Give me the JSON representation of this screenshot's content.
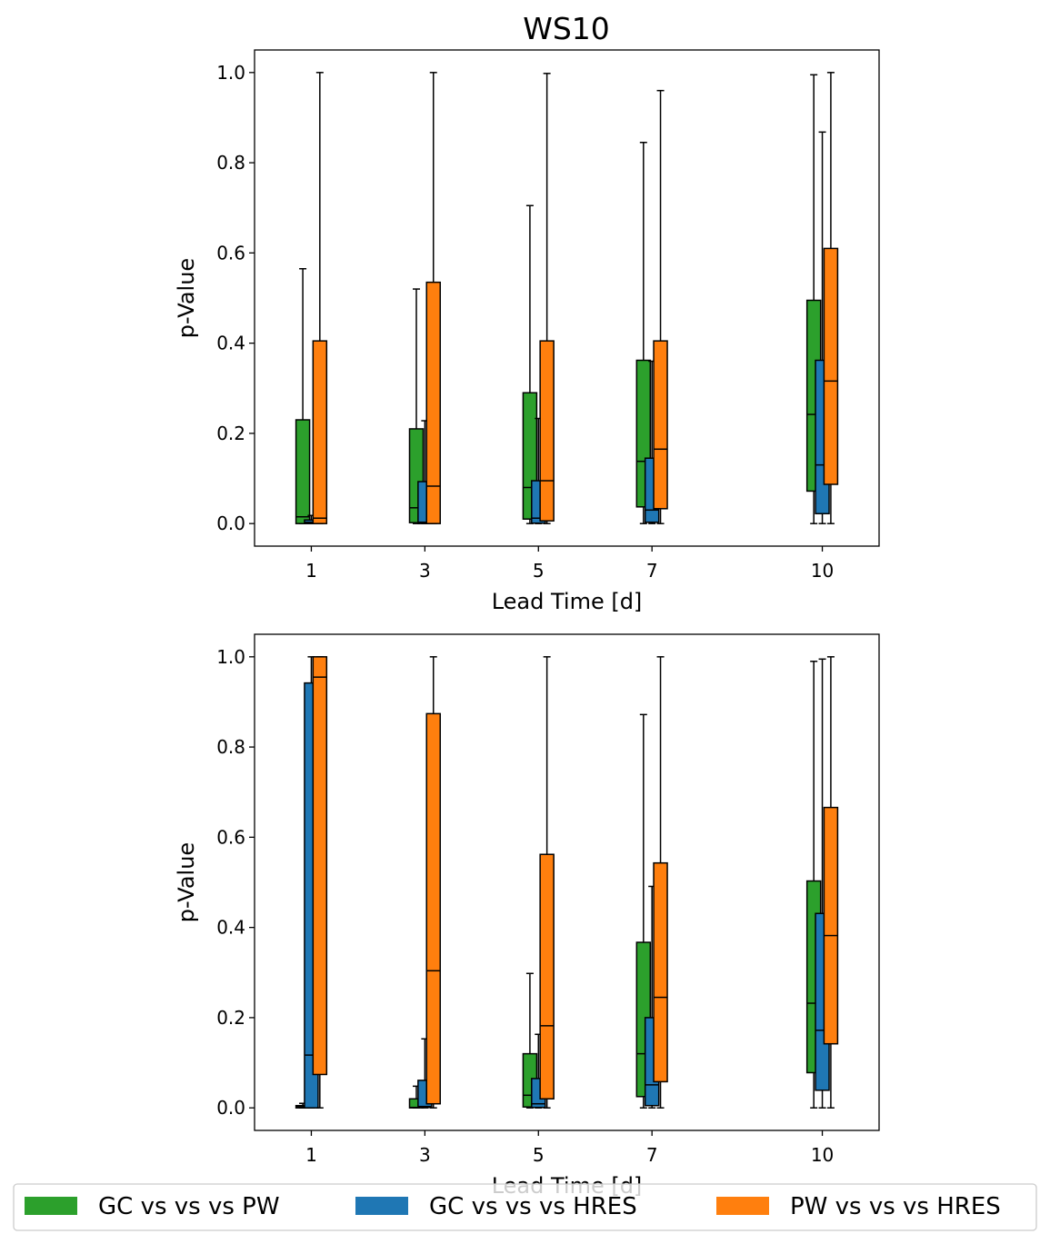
{
  "title": "WS10",
  "legend": {
    "placement": "bottom",
    "items": [
      {
        "label": "GC vs vs vs PW",
        "color": "#2ca02c"
      },
      {
        "label": "GC vs vs vs HRES",
        "color": "#1f77b4"
      },
      {
        "label": "PW vs vs vs HRES",
        "color": "#ff7f0e"
      }
    ]
  },
  "chart_data": [
    {
      "type": "box",
      "xlabel": "Lead Time [d]",
      "ylabel": "p-Value",
      "xlim": [
        0,
        11
      ],
      "ylim": [
        -0.05,
        1.05
      ],
      "xticks": [
        1,
        3,
        5,
        7,
        10
      ],
      "yticks": [
        0.0,
        0.2,
        0.4,
        0.6,
        0.8,
        1.0
      ],
      "grid": false,
      "series": [
        {
          "name": "GC vs vs vs PW",
          "color": "#2ca02c",
          "boxes": [
            {
              "x": 1,
              "min": 0.0,
              "q1": 0.0,
              "median": 0.015,
              "q3": 0.23,
              "max": 0.565
            },
            {
              "x": 3,
              "min": 0.0,
              "q1": 0.002,
              "median": 0.035,
              "q3": 0.21,
              "max": 0.52
            },
            {
              "x": 5,
              "min": 0.0,
              "q1": 0.01,
              "median": 0.08,
              "q3": 0.29,
              "max": 0.705
            },
            {
              "x": 7,
              "min": 0.0,
              "q1": 0.037,
              "median": 0.138,
              "q3": 0.362,
              "max": 0.845
            },
            {
              "x": 10,
              "min": 0.0,
              "q1": 0.072,
              "median": 0.242,
              "q3": 0.495,
              "max": 0.995
            }
          ]
        },
        {
          "name": "GC vs vs vs HRES",
          "color": "#1f77b4",
          "boxes": [
            {
              "x": 1,
              "min": 0.0,
              "q1": 0.0,
              "median": 0.003,
              "q3": 0.008,
              "max": 0.018
            },
            {
              "x": 3,
              "min": 0.0,
              "q1": 0.0,
              "median": 0.003,
              "q3": 0.093,
              "max": 0.228
            },
            {
              "x": 5,
              "min": 0.0,
              "q1": 0.001,
              "median": 0.012,
              "q3": 0.095,
              "max": 0.233
            },
            {
              "x": 7,
              "min": 0.0,
              "q1": 0.003,
              "median": 0.03,
              "q3": 0.145,
              "max": 0.36
            },
            {
              "x": 10,
              "min": 0.0,
              "q1": 0.022,
              "median": 0.13,
              "q3": 0.362,
              "max": 0.868
            }
          ]
        },
        {
          "name": "PW vs vs vs HRES",
          "color": "#ff7f0e",
          "boxes": [
            {
              "x": 1,
              "min": 0.0,
              "q1": 0.0,
              "median": 0.012,
              "q3": 0.405,
              "max": 1.0
            },
            {
              "x": 3,
              "min": 0.0,
              "q1": 0.0,
              "median": 0.083,
              "q3": 0.535,
              "max": 1.0
            },
            {
              "x": 5,
              "min": 0.0,
              "q1": 0.006,
              "median": 0.095,
              "q3": 0.405,
              "max": 0.998
            },
            {
              "x": 7,
              "min": 0.0,
              "q1": 0.033,
              "median": 0.165,
              "q3": 0.405,
              "max": 0.96
            },
            {
              "x": 10,
              "min": 0.0,
              "q1": 0.087,
              "median": 0.316,
              "q3": 0.61,
              "max": 1.0
            }
          ]
        }
      ]
    },
    {
      "type": "box",
      "xlabel": "Lead Time [d]",
      "ylabel": "p-Value",
      "xlim": [
        0,
        11
      ],
      "ylim": [
        -0.05,
        1.05
      ],
      "xticks": [
        1,
        3,
        5,
        7,
        10
      ],
      "yticks": [
        0.0,
        0.2,
        0.4,
        0.6,
        0.8,
        1.0
      ],
      "grid": false,
      "series": [
        {
          "name": "GC vs vs vs PW",
          "color": "#2ca02c",
          "boxes": [
            {
              "x": 1,
              "min": 0.0,
              "q1": 0.0,
              "median": 0.002,
              "q3": 0.005,
              "max": 0.01
            },
            {
              "x": 3,
              "min": 0.0,
              "q1": 0.0,
              "median": 0.001,
              "q3": 0.02,
              "max": 0.048
            },
            {
              "x": 5,
              "min": 0.0,
              "q1": 0.002,
              "median": 0.028,
              "q3": 0.12,
              "max": 0.298
            },
            {
              "x": 7,
              "min": 0.0,
              "q1": 0.025,
              "median": 0.12,
              "q3": 0.367,
              "max": 0.872
            },
            {
              "x": 10,
              "min": 0.0,
              "q1": 0.078,
              "median": 0.232,
              "q3": 0.503,
              "max": 0.99
            }
          ]
        },
        {
          "name": "GC vs vs vs HRES",
          "color": "#1f77b4",
          "boxes": [
            {
              "x": 1,
              "min": 0.0,
              "q1": 0.0,
              "median": 0.117,
              "q3": 0.942,
              "max": 1.0
            },
            {
              "x": 3,
              "min": 0.0,
              "q1": 0.001,
              "median": 0.003,
              "q3": 0.061,
              "max": 0.153
            },
            {
              "x": 5,
              "min": 0.0,
              "q1": 0.001,
              "median": 0.009,
              "q3": 0.065,
              "max": 0.163
            },
            {
              "x": 7,
              "min": 0.0,
              "q1": 0.005,
              "median": 0.051,
              "q3": 0.2,
              "max": 0.491
            },
            {
              "x": 10,
              "min": 0.0,
              "q1": 0.039,
              "median": 0.172,
              "q3": 0.431,
              "max": 0.995
            }
          ]
        },
        {
          "name": "PW vs vs vs HRES",
          "color": "#ff7f0e",
          "boxes": [
            {
              "x": 1,
              "min": 0.0,
              "q1": 0.074,
              "median": 0.955,
              "q3": 1.0,
              "max": 1.0
            },
            {
              "x": 3,
              "min": 0.0,
              "q1": 0.009,
              "median": 0.304,
              "q3": 0.874,
              "max": 1.0
            },
            {
              "x": 5,
              "min": 0.0,
              "q1": 0.02,
              "median": 0.182,
              "q3": 0.562,
              "max": 1.0
            },
            {
              "x": 7,
              "min": 0.0,
              "q1": 0.058,
              "median": 0.245,
              "q3": 0.543,
              "max": 1.0
            },
            {
              "x": 10,
              "min": 0.0,
              "q1": 0.142,
              "median": 0.382,
              "q3": 0.666,
              "max": 1.0
            }
          ]
        }
      ]
    }
  ]
}
